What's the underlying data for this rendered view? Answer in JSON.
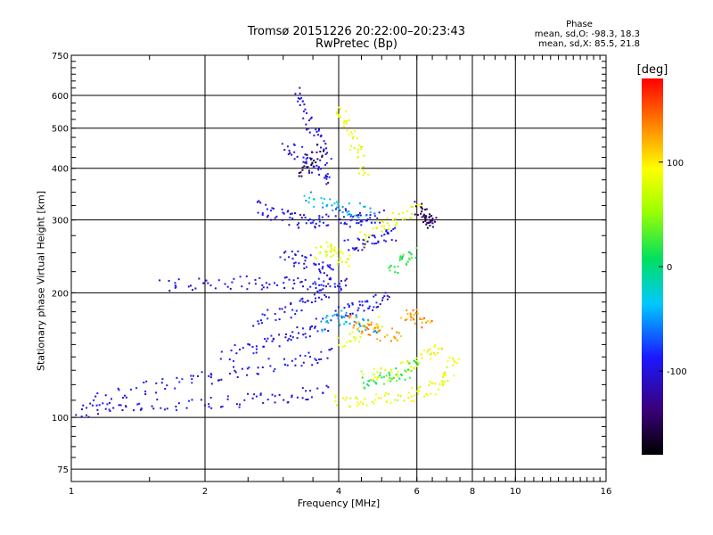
{
  "chart_data": {
    "type": "scatter",
    "title": "Tromsø 20151226 20:22:00–20:23:43",
    "subtitle": "RwPretec (Bp)",
    "xlabel": "Frequency [MHz]",
    "ylabel": "Stationary phase Virtual Height [km]",
    "x_scale": "log",
    "y_scale": "log",
    "xlim": [
      1,
      16
    ],
    "ylim": [
      70,
      750
    ],
    "x_ticks": [
      1,
      2,
      4,
      6,
      8,
      10,
      16
    ],
    "x_tick_labels": [
      "1",
      "2",
      "4",
      "6",
      "8",
      "10",
      "16"
    ],
    "y_ticks": [
      75,
      100,
      200,
      300,
      400,
      500,
      600,
      750
    ],
    "y_tick_labels": [
      "75",
      "100",
      "200",
      "300",
      "400",
      "500",
      "600",
      "750"
    ],
    "grid": true,
    "colorbar": {
      "label": "[deg]",
      "range": [
        -180,
        180
      ],
      "ticks": [
        -100,
        0,
        100
      ],
      "tick_labels": [
        "-100",
        "0",
        "100"
      ]
    },
    "annotation": {
      "heading": "Phase",
      "line_o": "mean, sd,O: -98.3, 18.3",
      "line_x": "mean, sd,X:  85.5, 21.8"
    },
    "series": [
      {
        "phase_deg": -98.3,
        "segments": [
          {
            "x": [
              1.02,
              1.2,
              1.5,
              2.0,
              2.6,
              3.2,
              3.8
            ],
            "y": [
              103,
              106,
              107,
              108,
              110,
              113,
              115
            ]
          },
          {
            "x": [
              1.1,
              1.4,
              1.8,
              2.2,
              2.8,
              3.4,
              3.9
            ],
            "y": [
              110,
              117,
              122,
              127,
              133,
              138,
              145
            ]
          },
          {
            "x": [
              1.6,
              2.0,
              2.5,
              3.0,
              3.5,
              3.9
            ],
            "y": [
              207,
              210,
              212,
              213,
              212,
              208
            ]
          },
          {
            "x": [
              2.6,
              2.9,
              3.2,
              3.5,
              3.8
            ],
            "y": [
              325,
              310,
              300,
              296,
              298
            ]
          },
          {
            "x": [
              3.2,
              3.4,
              3.6,
              3.8
            ],
            "y": [
              620,
              540,
              470,
              420
            ]
          },
          {
            "x": [
              3.0,
              3.3,
              3.6,
              3.9
            ],
            "y": [
              455,
              430,
              400,
              370
            ]
          },
          {
            "x": [
              2.6,
              3.0,
              3.4,
              3.8,
              4.2
            ],
            "y": [
              170,
              180,
              190,
              200,
              215
            ]
          },
          {
            "x": [
              2.2,
              2.6,
              3.0,
              3.4,
              3.8
            ],
            "y": [
              140,
              148,
              155,
              162,
              170
            ]
          },
          {
            "x": [
              3.0,
              3.3,
              3.6,
              3.9
            ],
            "y": [
              250,
              240,
              232,
              225
            ]
          },
          {
            "x": [
              4.0,
              4.3,
              4.6,
              5.0
            ],
            "y": [
              310,
              300,
              300,
              305
            ]
          },
          {
            "x": [
              4.2,
              4.6,
              5.0,
              5.4
            ],
            "y": [
              260,
              265,
              270,
              280
            ]
          },
          {
            "x": [
              4.0,
              4.4,
              4.8,
              5.2
            ],
            "y": [
              180,
              185,
              190,
              195
            ]
          }
        ]
      },
      {
        "phase_deg": 85.5,
        "segments": [
          {
            "x": [
              3.9,
              4.5,
              5.2,
              6.0,
              6.6,
              7.0,
              7.3
            ],
            "y": [
              110,
              110,
              111,
              114,
              118,
              125,
              140
            ]
          },
          {
            "x": [
              4.6,
              5.2,
              5.8,
              6.3,
              6.8
            ],
            "y": [
              125,
              128,
              133,
              140,
              150
            ]
          },
          {
            "x": [
              3.6,
              3.8,
              4.0,
              4.2
            ],
            "y": [
              250,
              255,
              245,
              240
            ]
          },
          {
            "x": [
              4.5,
              5.0,
              5.5,
              6.0
            ],
            "y": [
              270,
              290,
              305,
              320
            ]
          },
          {
            "x": [
              4.0,
              4.2,
              4.4,
              4.6
            ],
            "y": [
              560,
              500,
              440,
              380
            ]
          },
          {
            "x": [
              4.0,
              4.5,
              5.0
            ],
            "y": [
              150,
              160,
              170
            ]
          }
        ]
      },
      {
        "phase_deg": 20,
        "segments": [
          {
            "x": [
              4.5,
              5.0,
              5.5,
              6.0
            ],
            "y": [
              120,
              125,
              128,
              132
            ]
          },
          {
            "x": [
              5.2,
              5.6,
              6.0
            ],
            "y": [
              230,
              240,
              250
            ]
          }
        ]
      },
      {
        "phase_deg": -40,
        "segments": [
          {
            "x": [
              3.7,
              4.0,
              4.4,
              4.8
            ],
            "y": [
              165,
              175,
              170,
              165
            ]
          },
          {
            "x": [
              3.4,
              3.8,
              4.2,
              4.8
            ],
            "y": [
              340,
              330,
              320,
              310
            ]
          }
        ]
      },
      {
        "phase_deg": 130,
        "segments": [
          {
            "x": [
              4.2,
              4.6,
              5.0,
              5.6
            ],
            "y": [
              170,
              165,
              160,
              155
            ]
          },
          {
            "x": [
              5.6,
              6.0,
              6.4
            ],
            "y": [
              180,
              175,
              170
            ]
          }
        ]
      },
      {
        "phase_deg": -150,
        "segments": [
          {
            "x": [
              3.3,
              3.5,
              3.7
            ],
            "y": [
              390,
              420,
              450
            ]
          },
          {
            "x": [
              6.0,
              6.2,
              6.4,
              6.6
            ],
            "y": [
              320,
              310,
              300,
              295
            ]
          }
        ]
      }
    ]
  }
}
